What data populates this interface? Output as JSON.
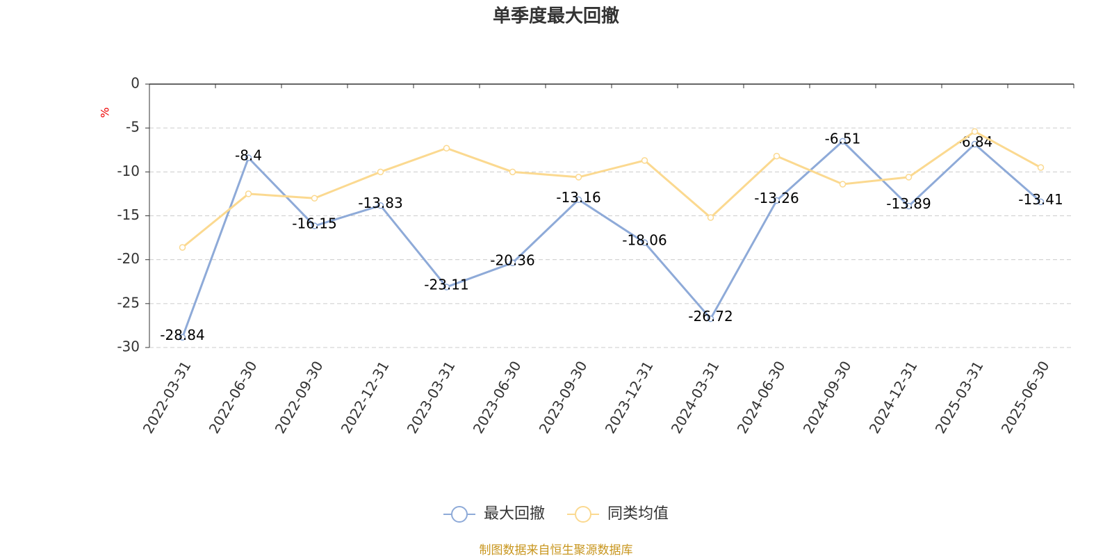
{
  "chart_data": {
    "type": "line",
    "title": "单季度最大回撤",
    "y_label": "%",
    "footer": "制图数据来自恒生聚源数据库",
    "categories": [
      "2022-03-31",
      "2022-06-30",
      "2022-09-30",
      "2022-12-31",
      "2023-03-31",
      "2023-06-30",
      "2023-09-30",
      "2023-12-31",
      "2024-03-31",
      "2024-06-30",
      "2024-09-30",
      "2024-12-31",
      "2025-03-31",
      "2025-06-30"
    ],
    "series": [
      {
        "name": "最大回撤",
        "color": "#8eaad8",
        "values": [
          -28.84,
          -8.4,
          -16.15,
          -13.83,
          -23.11,
          -20.36,
          -13.16,
          -18.06,
          -26.72,
          -13.26,
          -6.51,
          -13.89,
          -6.84,
          -13.41
        ]
      },
      {
        "name": "同类均值",
        "color": "#fbd990",
        "values": [
          -18.6,
          -12.5,
          -13.0,
          -10.0,
          -7.3,
          -10.0,
          -10.6,
          -8.7,
          -15.2,
          -8.2,
          -11.4,
          -10.6,
          -5.4,
          -9.5
        ]
      }
    ],
    "ylim": [
      -30,
      0
    ],
    "yticks": [
      0,
      -5,
      -10,
      -15,
      -20,
      -25,
      -30
    ],
    "grid": true
  }
}
